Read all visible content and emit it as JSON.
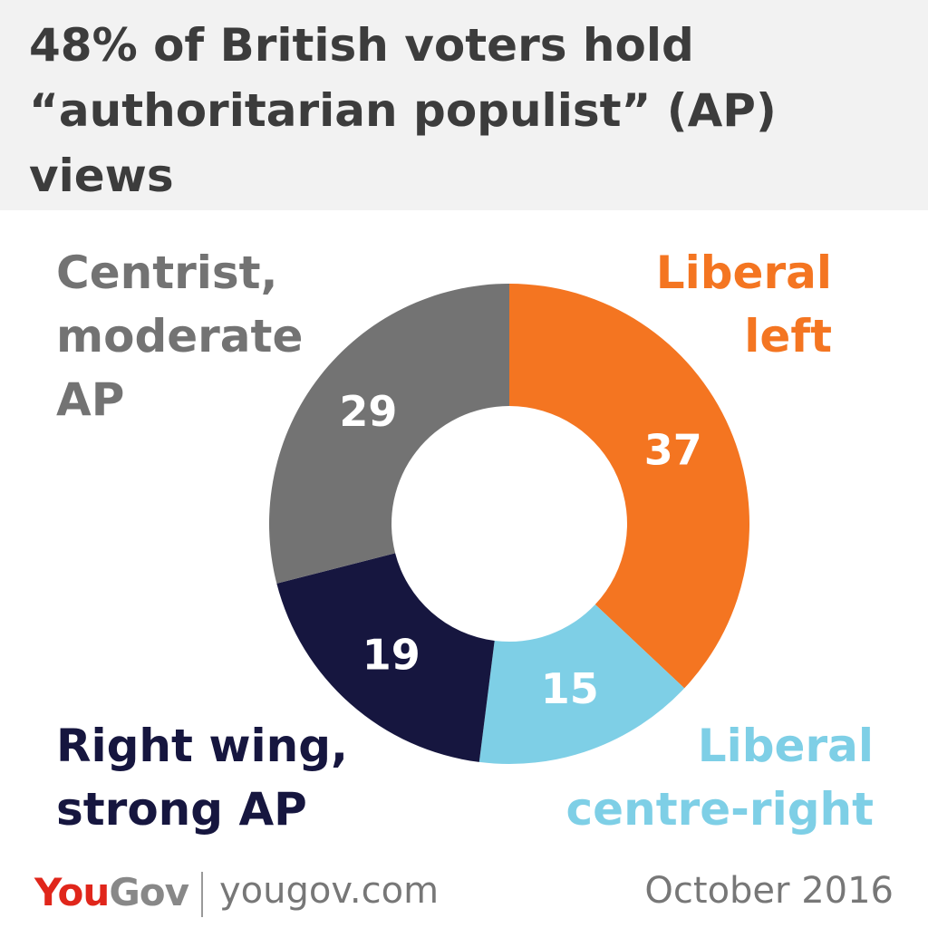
{
  "chart_data": {
    "type": "donut",
    "title": "48% of British voters hold “authoritarian populist” (AP) views",
    "categories": [
      "Liberal left",
      "Liberal centre-right",
      "Right wing, strong AP",
      "Centrist, moderate AP"
    ],
    "values": [
      37,
      15,
      19,
      29
    ],
    "colors": [
      "#f47521",
      "#7ecfe6",
      "#16163f",
      "#737373"
    ]
  },
  "footer": {
    "logo_you": "You",
    "logo_gov": "Gov",
    "site": "yougov.com",
    "date": "October 2016"
  }
}
